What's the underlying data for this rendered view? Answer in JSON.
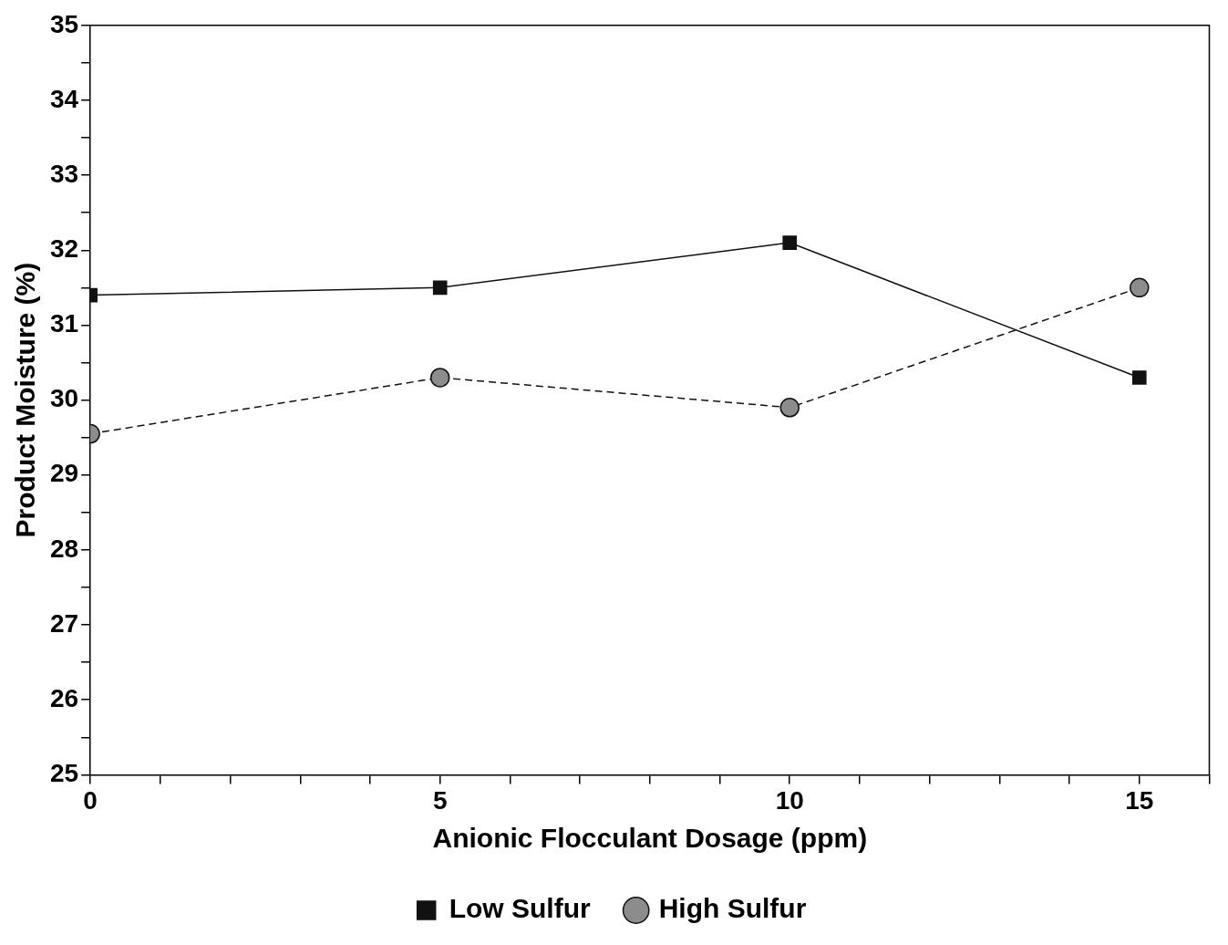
{
  "chart_data": {
    "type": "line",
    "xlabel": "Anionic Flocculant Dosage (ppm)",
    "ylabel": "Product Moisture (%)",
    "x": [
      0,
      5,
      10,
      15
    ],
    "series": [
      {
        "name": "Low Sulfur",
        "color": "#111111",
        "values": [
          31.4,
          31.5,
          32.1,
          30.3
        ],
        "marker": "square",
        "line_style": "solid"
      },
      {
        "name": "High Sulfur",
        "color": "#8c8c8c",
        "values": [
          29.55,
          30.3,
          29.9,
          31.5
        ],
        "marker": "circle",
        "line_style": "dashed"
      }
    ],
    "xlim": [
      0,
      16
    ],
    "xticks": [
      0,
      {
        "value": 1,
        "label": null
      },
      {
        "value": 2,
        "label": null
      },
      {
        "value": 3,
        "label": null
      },
      {
        "value": 4,
        "label": null
      },
      5,
      {
        "value": 6,
        "label": null
      },
      {
        "value": 7,
        "label": null
      },
      {
        "value": 8,
        "label": null
      },
      {
        "value": 9,
        "label": null
      },
      10,
      {
        "value": 11,
        "label": null
      },
      {
        "value": 12,
        "label": null
      },
      {
        "value": 13,
        "label": null
      },
      {
        "value": 14,
        "label": null
      },
      15,
      {
        "value": 16,
        "label": null
      }
    ],
    "ylim": [
      25,
      35
    ],
    "yticks": [
      25,
      {
        "value": 25.5,
        "label": null
      },
      26,
      {
        "value": 26.5,
        "label": null
      },
      27,
      {
        "value": 27.5,
        "label": null
      },
      28,
      {
        "value": 28.5,
        "label": null
      },
      29,
      {
        "value": 29.5,
        "label": null
      },
      30,
      {
        "value": 30.5,
        "label": null
      },
      31,
      {
        "value": 31.5,
        "label": null
      },
      32,
      {
        "value": 32.5,
        "label": null
      },
      33,
      {
        "value": 33.5,
        "label": null
      },
      34,
      {
        "value": 34.5,
        "label": null
      },
      35
    ],
    "grid": false,
    "legend": "bottom"
  }
}
